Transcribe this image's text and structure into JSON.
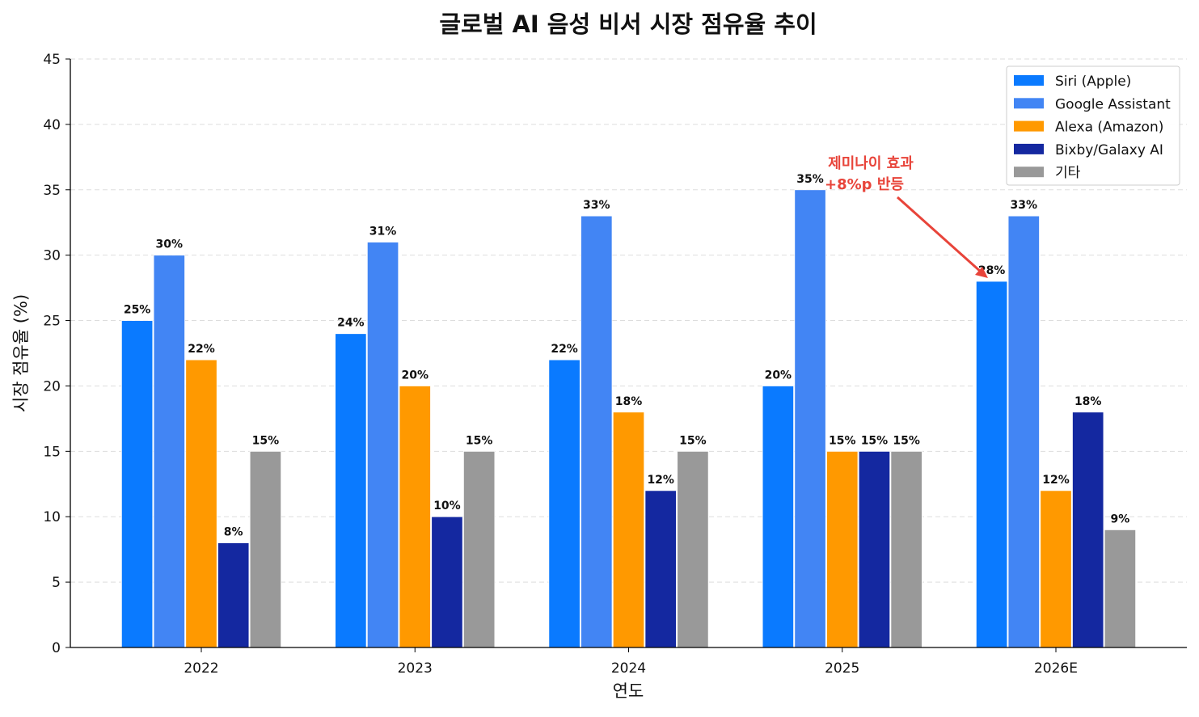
{
  "chart_data": {
    "type": "bar",
    "title": "글로벌 AI 음성 비서 시장 점유율 추이",
    "xlabel": "연도",
    "ylabel": "시장 점유율 (%)",
    "ylim": [
      0,
      45
    ],
    "yticks": [
      0,
      5,
      10,
      15,
      20,
      25,
      30,
      35,
      40,
      45
    ],
    "grid": "y-dashed",
    "legend_position": "top-right",
    "categories": [
      "2022",
      "2023",
      "2024",
      "2025",
      "2026E"
    ],
    "series": [
      {
        "name": "Siri (Apple)",
        "color": "#0A7AFF",
        "values": [
          25,
          24,
          22,
          20,
          28
        ]
      },
      {
        "name": "Google Assistant",
        "color": "#4285F4",
        "values": [
          30,
          31,
          33,
          35,
          33
        ]
      },
      {
        "name": "Alexa (Amazon)",
        "color": "#FF9900",
        "values": [
          22,
          20,
          18,
          15,
          12
        ]
      },
      {
        "name": "Bixby/Galaxy AI",
        "color": "#1428A0",
        "values": [
          8,
          10,
          12,
          15,
          18
        ]
      },
      {
        "name": "기타",
        "color": "#999999",
        "values": [
          15,
          15,
          15,
          15,
          9
        ]
      }
    ],
    "data_label_suffix": "%",
    "annotation": {
      "lines": [
        "제미나이 효과",
        "+8%p 반등"
      ],
      "color": "#E8443A",
      "target_category": "2026E",
      "target_series": "Siri (Apple)"
    }
  }
}
